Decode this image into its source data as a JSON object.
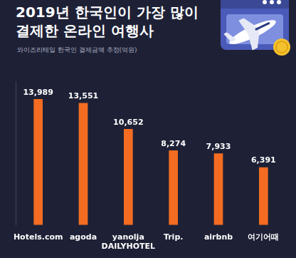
{
  "chart_data": {
    "type": "bar",
    "title": "2019년 한국인이 가장 많이\n결제한 온라인 여행사",
    "subtitle": "와이즈리테일 한국인 결제금액 추정(억원)",
    "categories": [
      "Hotels.com",
      "agoda",
      "yanolja DAILYHOTEL",
      "Trip.",
      "airbnb",
      "여기어때"
    ],
    "values": [
      13989,
      13551,
      10652,
      8274,
      7933,
      6391
    ],
    "value_labels": [
      "13,989",
      "13,551",
      "10,652",
      "8,274",
      "7,933",
      "6,391"
    ],
    "color": "#f36c21",
    "ylim": [
      0,
      16000
    ],
    "grid": false,
    "data_labels": true,
    "tick_labels": "x"
  }
}
